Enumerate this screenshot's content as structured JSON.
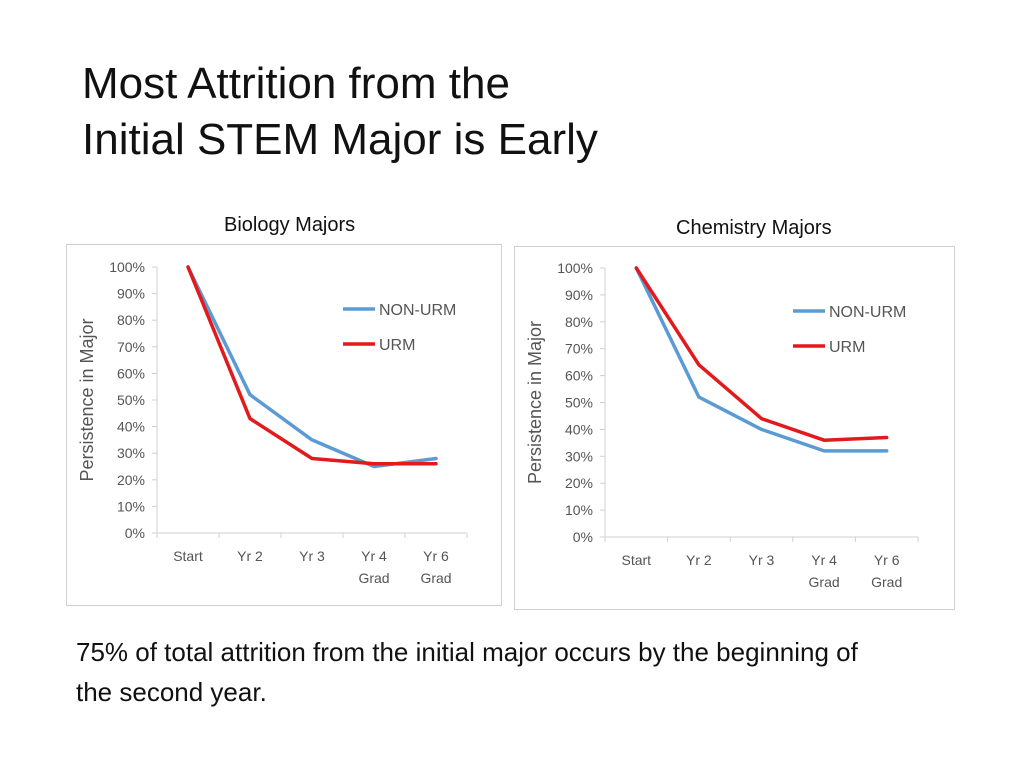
{
  "slide": {
    "title_line1": "Most Attrition from the",
    "title_line2": "Initial STEM Major is Early",
    "footnote": "75% of total attrition from the initial major occurs by the beginning of the second year."
  },
  "colors": {
    "non_urm": "#5b9bd5",
    "urm": "#e31a1c",
    "axis": "#d0d0d0",
    "text": "#555555"
  },
  "chart_data": [
    {
      "type": "line",
      "title": "Biology Majors",
      "categories": [
        [
          "Start"
        ],
        [
          "Yr 2"
        ],
        [
          "Yr 3"
        ],
        [
          "Yr 4",
          "Grad"
        ],
        [
          "Yr 6",
          "Grad"
        ]
      ],
      "series": [
        {
          "name": "NON-URM",
          "values": [
            100,
            52,
            35,
            25,
            28
          ]
        },
        {
          "name": "URM",
          "values": [
            100,
            43,
            28,
            26,
            26
          ]
        }
      ],
      "xlabel": "",
      "ylabel": "Persistence in Major",
      "ylim": [
        0,
        100
      ],
      "yticks": [
        "0%",
        "10%",
        "20%",
        "30%",
        "40%",
        "50%",
        "60%",
        "70%",
        "80%",
        "90%",
        "100%"
      ],
      "legend_position": "top-right",
      "grid": false
    },
    {
      "type": "line",
      "title": "Chemistry Majors",
      "categories": [
        [
          "Start"
        ],
        [
          "Yr 2"
        ],
        [
          "Yr 3"
        ],
        [
          "Yr 4",
          "Grad"
        ],
        [
          "Yr 6",
          "Grad"
        ]
      ],
      "series": [
        {
          "name": "NON-URM",
          "values": [
            100,
            52,
            40,
            32,
            32
          ]
        },
        {
          "name": "URM",
          "values": [
            100,
            64,
            44,
            36,
            37
          ]
        }
      ],
      "xlabel": "",
      "ylabel": "Persistence in Major",
      "ylim": [
        0,
        100
      ],
      "yticks": [
        "0%",
        "10%",
        "20%",
        "30%",
        "40%",
        "50%",
        "60%",
        "70%",
        "80%",
        "90%",
        "100%"
      ],
      "legend_position": "top-right",
      "grid": false
    }
  ]
}
